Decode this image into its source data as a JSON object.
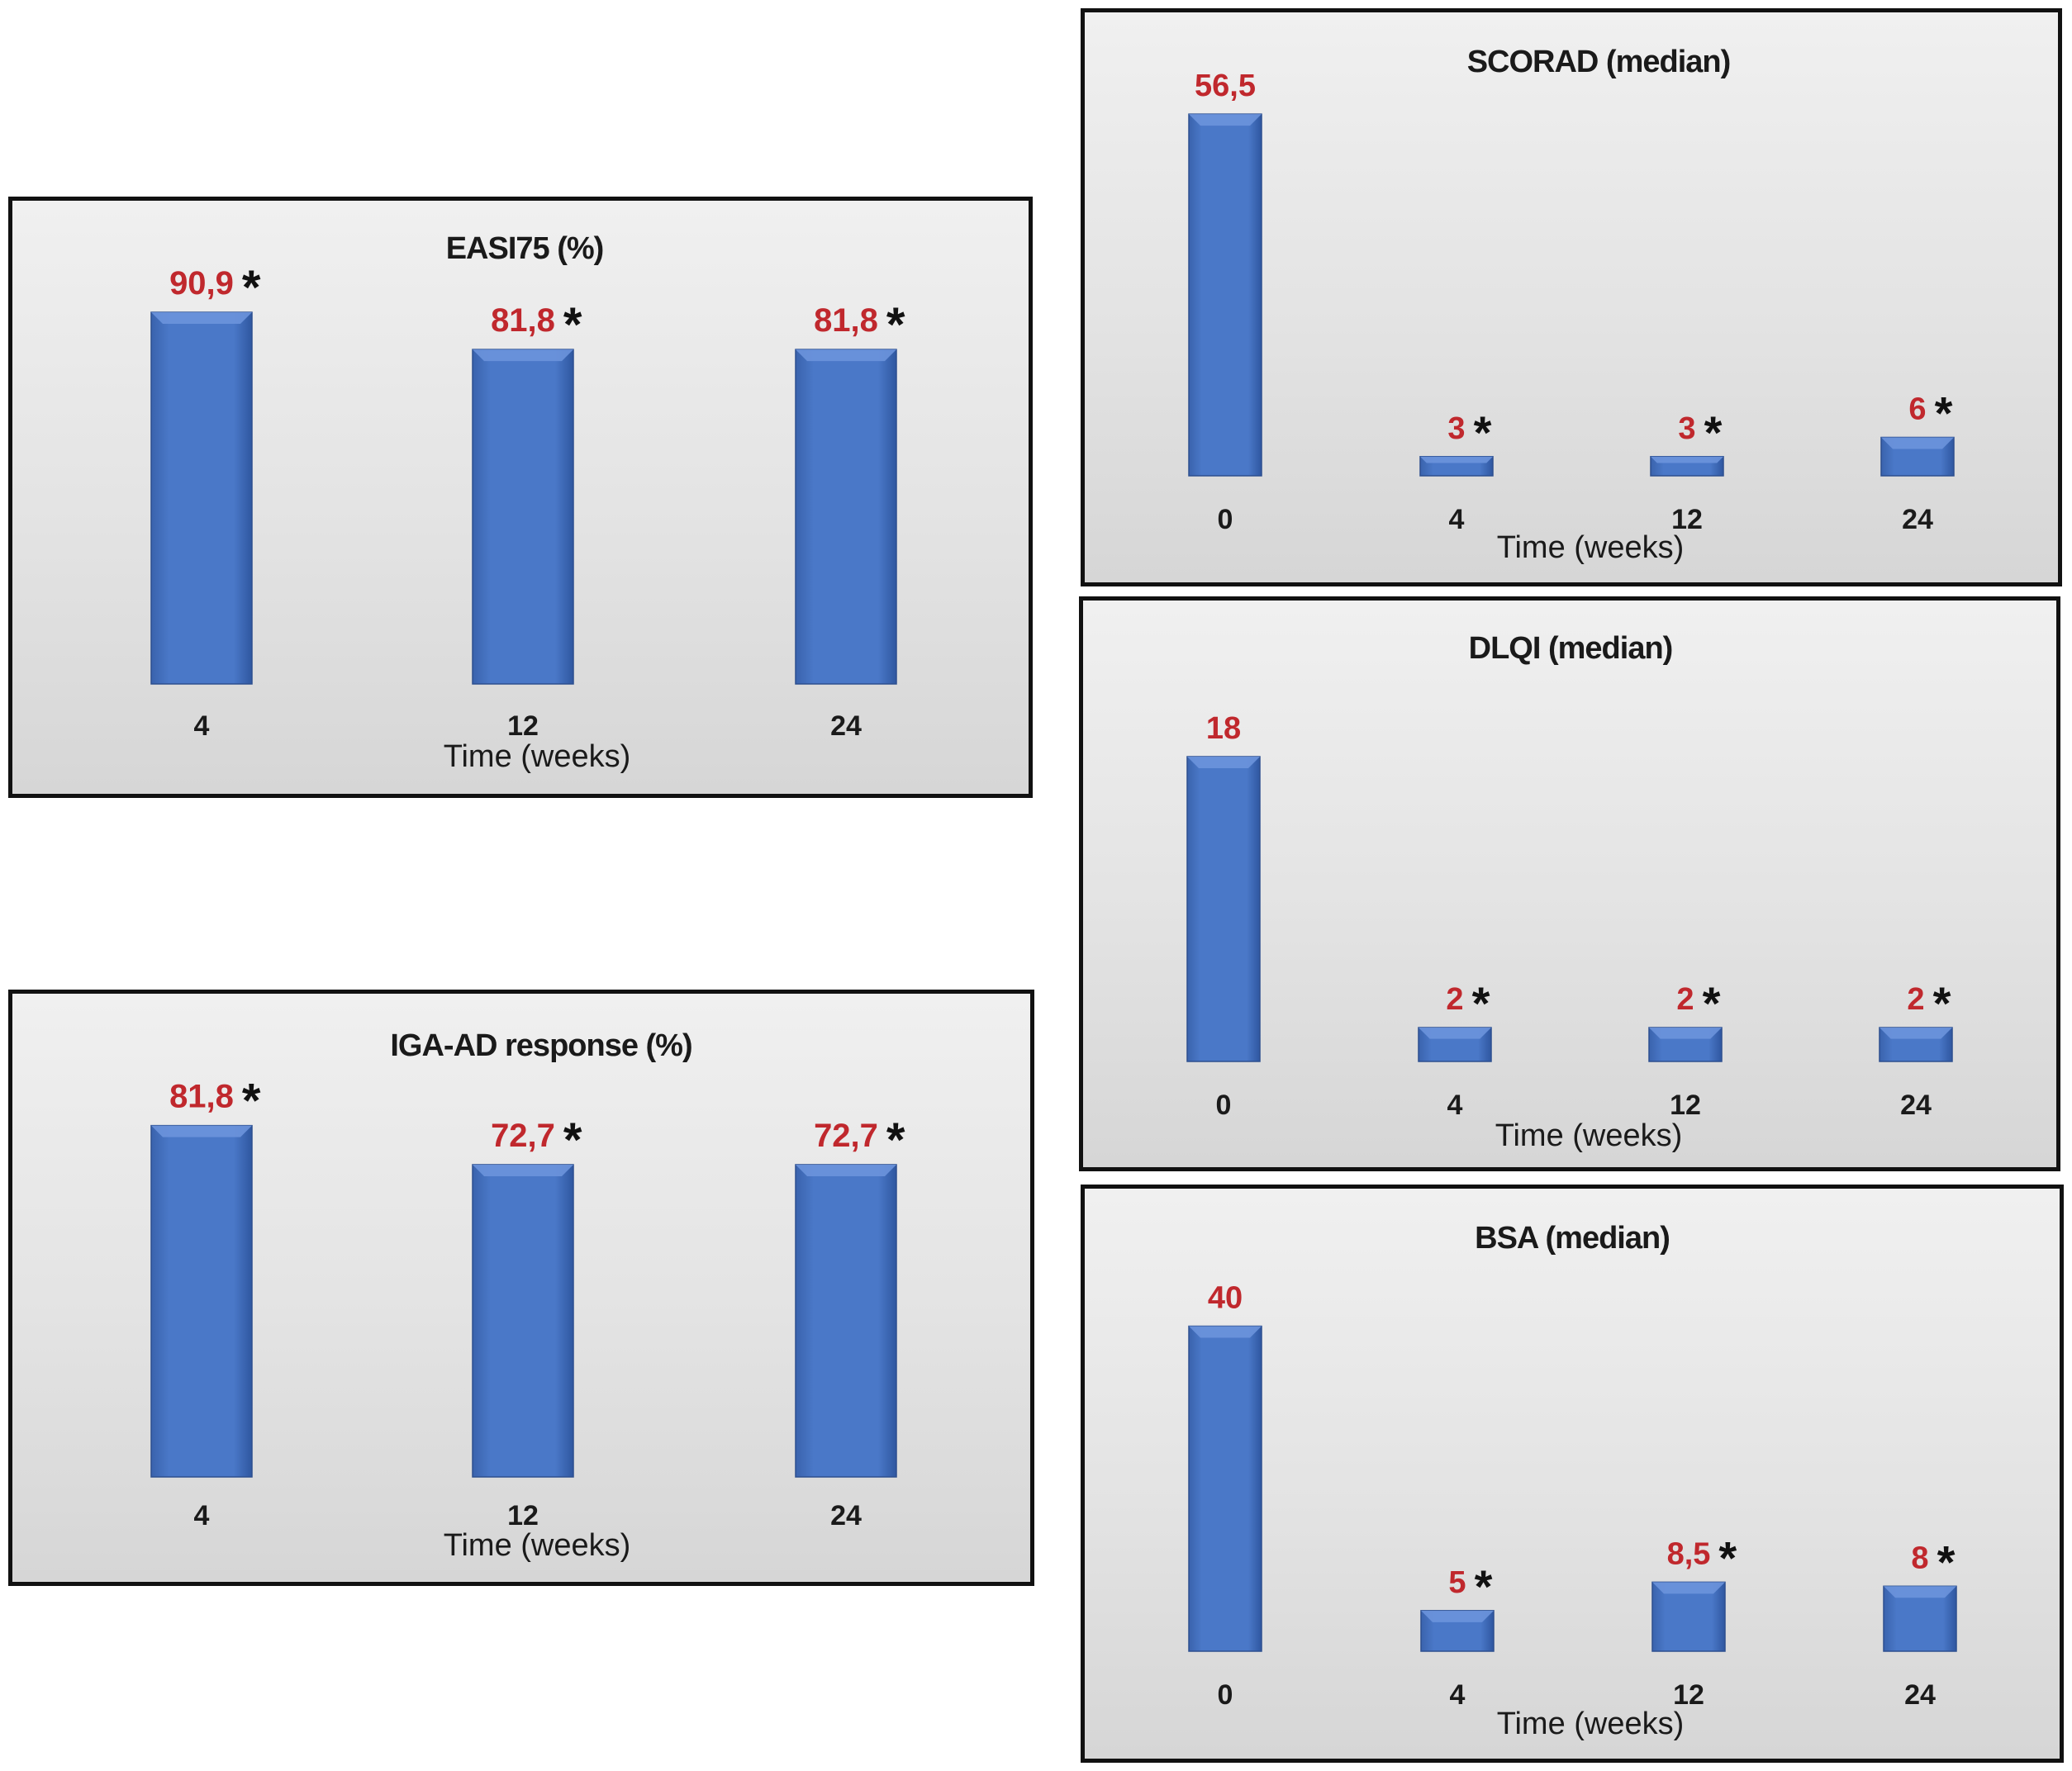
{
  "colors": {
    "bar": "#4472c4",
    "value_label": "#c0282d",
    "star": "#111111",
    "frame": "#111111"
  },
  "chart_data": [
    {
      "type": "bar",
      "title": "EASI75 (%)",
      "xlabel": "Time (weeks)",
      "ylabel": "",
      "categories": [
        "4",
        "12",
        "24"
      ],
      "values": [
        90.9,
        81.8,
        81.8
      ],
      "value_labels": [
        "90,9",
        "81,8",
        "81,8"
      ],
      "significance_markers": [
        "*",
        "*",
        "*"
      ],
      "ylim": [
        0,
        100
      ],
      "grid": false,
      "legend": "none"
    },
    {
      "type": "bar",
      "title": "IGA-AD response (%)",
      "xlabel": "Time (weeks)",
      "ylabel": "",
      "categories": [
        "4",
        "12",
        "24"
      ],
      "values": [
        81.8,
        72.7,
        72.7
      ],
      "value_labels": [
        "81,8",
        "72,7",
        "72,7"
      ],
      "significance_markers": [
        "*",
        "*",
        "*"
      ],
      "ylim": [
        0,
        100
      ],
      "grid": false,
      "legend": "none"
    },
    {
      "type": "bar",
      "title": "SCORAD (median)",
      "xlabel": "Time (weeks)",
      "ylabel": "",
      "categories": [
        "0",
        "4",
        "12",
        "24"
      ],
      "values": [
        56.5,
        3,
        3,
        6
      ],
      "value_labels": [
        "56,5",
        "3",
        "3",
        "6"
      ],
      "significance_markers": [
        "",
        "*",
        "*",
        "*"
      ],
      "ylim": [
        0,
        60
      ],
      "grid": false,
      "legend": "none"
    },
    {
      "type": "bar",
      "title": "DLQI (median)",
      "xlabel": "Time (weeks)",
      "ylabel": "",
      "categories": [
        "0",
        "4",
        "12",
        "24"
      ],
      "values": [
        18,
        2,
        2,
        2
      ],
      "value_labels": [
        "18",
        "2",
        "2",
        "2"
      ],
      "significance_markers": [
        "",
        "*",
        "*",
        "*"
      ],
      "ylim": [
        0,
        20
      ],
      "grid": false,
      "legend": "none"
    },
    {
      "type": "bar",
      "title": "BSA (median)",
      "xlabel": "Time (weeks)",
      "ylabel": "",
      "categories": [
        "0",
        "4",
        "12",
        "24"
      ],
      "values": [
        40,
        5,
        8.5,
        8
      ],
      "value_labels": [
        "40",
        "5",
        "8,5",
        "8"
      ],
      "significance_markers": [
        "",
        "*",
        "*",
        "*"
      ],
      "ylim": [
        0,
        43
      ],
      "grid": false,
      "legend": "none"
    }
  ]
}
